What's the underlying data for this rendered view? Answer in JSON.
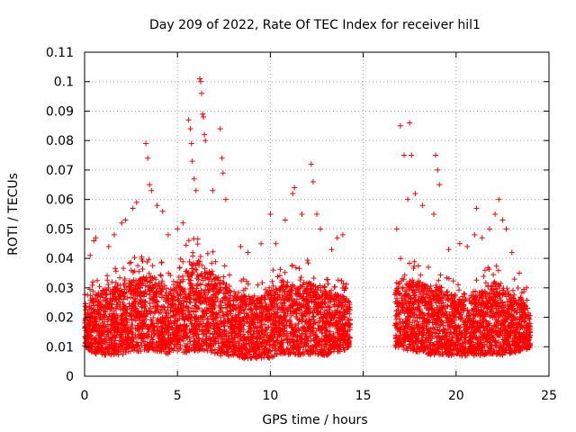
{
  "chart_data": {
    "type": "scatter",
    "title": "Day 209 of 2022, Rate Of TEC Index for receiver hil1",
    "xlabel": "GPS time / hours",
    "ylabel": "ROTI / TECUs",
    "xlim": [
      0,
      25
    ],
    "ylim": [
      0,
      0.11
    ],
    "x_ticks": [
      "0",
      "5",
      "10",
      "15",
      "20",
      "25"
    ],
    "y_ticks": [
      "0",
      "0.01",
      "0.02",
      "0.03",
      "0.04",
      "0.05",
      "0.06",
      "0.07",
      "0.08",
      "0.09",
      "0.1",
      "0.11"
    ],
    "grid": true,
    "marker": "+",
    "marker_color": "#ff0000",
    "data_gap_hours": [
      14.3,
      16.7
    ],
    "series": [
      {
        "points": [
          [
            0.3,
            0.041
          ],
          [
            0.5,
            0.046
          ],
          [
            0.6,
            0.047
          ],
          [
            1.3,
            0.044
          ],
          [
            1.6,
            0.048
          ],
          [
            2.0,
            0.052
          ],
          [
            2.2,
            0.053
          ],
          [
            2.6,
            0.057
          ],
          [
            2.8,
            0.059
          ],
          [
            3.3,
            0.079
          ],
          [
            3.4,
            0.074
          ],
          [
            3.5,
            0.065
          ],
          [
            3.6,
            0.063
          ],
          [
            3.9,
            0.058
          ],
          [
            4.2,
            0.056
          ],
          [
            4.5,
            0.048
          ],
          [
            5.0,
            0.05
          ],
          [
            5.3,
            0.052
          ],
          [
            5.6,
            0.087
          ],
          [
            5.7,
            0.084
          ],
          [
            5.75,
            0.079
          ],
          [
            5.8,
            0.073
          ],
          [
            5.9,
            0.067
          ],
          [
            6.0,
            0.063
          ],
          [
            6.2,
            0.101
          ],
          [
            6.25,
            0.1
          ],
          [
            6.3,
            0.096
          ],
          [
            6.35,
            0.089
          ],
          [
            6.4,
            0.088
          ],
          [
            6.45,
            0.082
          ],
          [
            6.5,
            0.08
          ],
          [
            6.9,
            0.063
          ],
          [
            7.3,
            0.084
          ],
          [
            7.4,
            0.074
          ],
          [
            7.45,
            0.069
          ],
          [
            7.6,
            0.06
          ],
          [
            8.4,
            0.044
          ],
          [
            8.8,
            0.042
          ],
          [
            9.5,
            0.045
          ],
          [
            10.0,
            0.055
          ],
          [
            10.3,
            0.045
          ],
          [
            10.8,
            0.053
          ],
          [
            11.2,
            0.062
          ],
          [
            11.3,
            0.064
          ],
          [
            11.7,
            0.055
          ],
          [
            12.2,
            0.072
          ],
          [
            12.3,
            0.066
          ],
          [
            12.5,
            0.055
          ],
          [
            12.7,
            0.05
          ],
          [
            13.3,
            0.043
          ],
          [
            13.6,
            0.047
          ],
          [
            13.9,
            0.048
          ],
          [
            16.8,
            0.05
          ],
          [
            17.0,
            0.085
          ],
          [
            17.2,
            0.075
          ],
          [
            17.4,
            0.06
          ],
          [
            17.5,
            0.086
          ],
          [
            17.6,
            0.075
          ],
          [
            17.8,
            0.062
          ],
          [
            18.2,
            0.058
          ],
          [
            18.8,
            0.055
          ],
          [
            18.9,
            0.075
          ],
          [
            19.0,
            0.07
          ],
          [
            19.1,
            0.065
          ],
          [
            19.6,
            0.043
          ],
          [
            20.2,
            0.045
          ],
          [
            20.6,
            0.044
          ],
          [
            21.0,
            0.048
          ],
          [
            21.1,
            0.057
          ],
          [
            21.4,
            0.047
          ],
          [
            21.8,
            0.05
          ],
          [
            22.1,
            0.055
          ],
          [
            22.3,
            0.06
          ],
          [
            22.5,
            0.053
          ],
          [
            22.7,
            0.05
          ],
          [
            23.0,
            0.042
          ],
          [
            23.4,
            0.035
          ],
          [
            23.8,
            0.03
          ]
        ],
        "bands": [
          [
            0.0,
            0.008,
            0.028
          ],
          [
            0.5,
            0.005,
            0.033
          ],
          [
            1.0,
            0.004,
            0.036
          ],
          [
            1.5,
            0.004,
            0.037
          ],
          [
            2.0,
            0.004,
            0.038
          ],
          [
            2.5,
            0.005,
            0.04
          ],
          [
            3.0,
            0.005,
            0.041
          ],
          [
            3.5,
            0.005,
            0.043
          ],
          [
            4.0,
            0.005,
            0.04
          ],
          [
            4.5,
            0.004,
            0.038
          ],
          [
            5.0,
            0.005,
            0.04
          ],
          [
            5.5,
            0.004,
            0.046
          ],
          [
            6.0,
            0.004,
            0.048
          ],
          [
            6.5,
            0.005,
            0.045
          ],
          [
            7.0,
            0.004,
            0.042
          ],
          [
            7.5,
            0.003,
            0.04
          ],
          [
            8.0,
            0.004,
            0.036
          ],
          [
            8.5,
            0.003,
            0.034
          ],
          [
            9.0,
            0.003,
            0.033
          ],
          [
            9.5,
            0.003,
            0.035
          ],
          [
            10.0,
            0.003,
            0.036
          ],
          [
            10.5,
            0.004,
            0.037
          ],
          [
            11.0,
            0.004,
            0.039
          ],
          [
            11.5,
            0.004,
            0.037
          ],
          [
            12.0,
            0.004,
            0.04
          ],
          [
            12.5,
            0.004,
            0.037
          ],
          [
            13.0,
            0.004,
            0.035
          ],
          [
            13.5,
            0.005,
            0.034
          ],
          [
            14.0,
            0.006,
            0.033
          ],
          [
            14.3,
            0.008,
            0.03
          ],
          [
            16.7,
            0.007,
            0.037
          ],
          [
            17.0,
            0.006,
            0.04
          ],
          [
            17.5,
            0.005,
            0.042
          ],
          [
            18.0,
            0.005,
            0.039
          ],
          [
            18.5,
            0.004,
            0.037
          ],
          [
            19.0,
            0.004,
            0.038
          ],
          [
            19.5,
            0.004,
            0.035
          ],
          [
            20.0,
            0.004,
            0.033
          ],
          [
            20.5,
            0.004,
            0.032
          ],
          [
            21.0,
            0.004,
            0.034
          ],
          [
            21.5,
            0.004,
            0.036
          ],
          [
            22.0,
            0.004,
            0.04
          ],
          [
            22.5,
            0.004,
            0.037
          ],
          [
            23.0,
            0.005,
            0.034
          ],
          [
            23.5,
            0.006,
            0.032
          ],
          [
            24.0,
            0.008,
            0.025
          ]
        ]
      }
    ]
  }
}
